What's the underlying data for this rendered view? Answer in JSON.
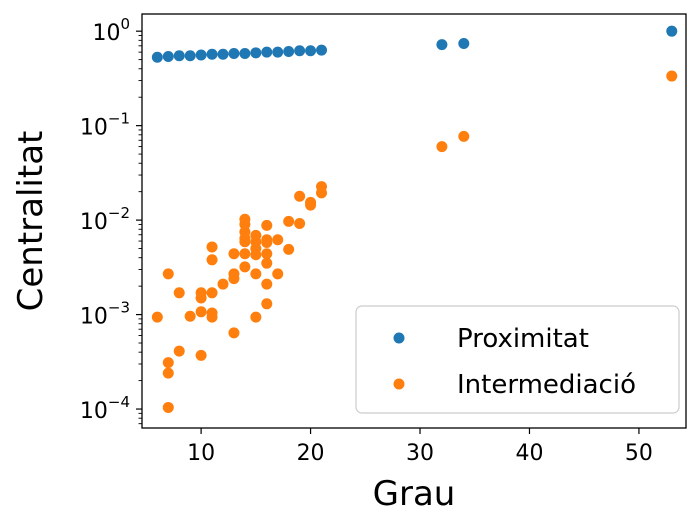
{
  "chart_data": {
    "type": "scatter",
    "xlabel": "Grau",
    "ylabel": "Centralitat",
    "xlim": [
      4.6,
      54.3
    ],
    "ylim": [
      6.3e-05,
      1.52
    ],
    "yscale": "log",
    "grid": false,
    "legend_position": "bottom-right",
    "xticks": [
      10,
      20,
      30,
      40,
      50
    ],
    "yticks": [
      {
        "value": 1,
        "base": "10",
        "exp": "0"
      },
      {
        "value": 0.1,
        "base": "10",
        "exp": "−1"
      },
      {
        "value": 0.01,
        "base": "10",
        "exp": "−2"
      },
      {
        "value": 0.001,
        "base": "10",
        "exp": "−3"
      },
      {
        "value": 0.0001,
        "base": "10",
        "exp": "−4"
      }
    ],
    "series": [
      {
        "name": "Proximitat",
        "color": "#1f77b4",
        "points": [
          [
            6,
            0.53
          ],
          [
            7,
            0.54
          ],
          [
            8,
            0.55
          ],
          [
            9,
            0.55
          ],
          [
            10,
            0.56
          ],
          [
            11,
            0.57
          ],
          [
            12,
            0.57
          ],
          [
            13,
            0.58
          ],
          [
            14,
            0.58
          ],
          [
            15,
            0.59
          ],
          [
            16,
            0.6
          ],
          [
            17,
            0.6
          ],
          [
            18,
            0.61
          ],
          [
            19,
            0.62
          ],
          [
            20,
            0.62
          ],
          [
            21,
            0.63
          ],
          [
            32,
            0.72
          ],
          [
            34,
            0.74
          ],
          [
            53,
            1.0
          ]
        ]
      },
      {
        "name": "Intermediació",
        "color": "#ff7f0e",
        "points": [
          [
            6,
            0.00094
          ],
          [
            7,
            0.0027
          ],
          [
            7,
            0.00031
          ],
          [
            7,
            0.00024
          ],
          [
            7,
            0.000104
          ],
          [
            8,
            0.0017
          ],
          [
            8,
            0.00041
          ],
          [
            9,
            0.00096
          ],
          [
            10,
            0.0017
          ],
          [
            10,
            0.0015
          ],
          [
            10,
            0.00107
          ],
          [
            10,
            0.00037
          ],
          [
            11,
            0.0052
          ],
          [
            11,
            0.0038
          ],
          [
            11,
            0.0017
          ],
          [
            11,
            0.00104
          ],
          [
            11,
            0.00094
          ],
          [
            12,
            0.0021
          ],
          [
            13,
            0.0044
          ],
          [
            13,
            0.0027
          ],
          [
            13,
            0.0024
          ],
          [
            13,
            0.00064
          ],
          [
            14,
            0.0102
          ],
          [
            14,
            0.009
          ],
          [
            14,
            0.0075
          ],
          [
            14,
            0.0064
          ],
          [
            14,
            0.0059
          ],
          [
            14,
            0.0044
          ],
          [
            14,
            0.0032
          ],
          [
            15,
            0.0069
          ],
          [
            15,
            0.0059
          ],
          [
            15,
            0.005
          ],
          [
            15,
            0.0043
          ],
          [
            15,
            0.0027
          ],
          [
            15,
            0.00094
          ],
          [
            16,
            0.0088
          ],
          [
            16,
            0.0062
          ],
          [
            16,
            0.0058
          ],
          [
            16,
            0.0044
          ],
          [
            16,
            0.0035
          ],
          [
            16,
            0.0021
          ],
          [
            16,
            0.0013
          ],
          [
            17,
            0.0062
          ],
          [
            17,
            0.0027
          ],
          [
            18,
            0.0097
          ],
          [
            18,
            0.0049
          ],
          [
            19,
            0.0179
          ],
          [
            19,
            0.0092
          ],
          [
            20,
            0.0154
          ],
          [
            20,
            0.0144
          ],
          [
            21,
            0.0226
          ],
          [
            21,
            0.0194
          ],
          [
            32,
            0.06
          ],
          [
            34,
            0.077
          ],
          [
            53,
            0.335
          ]
        ]
      }
    ]
  }
}
